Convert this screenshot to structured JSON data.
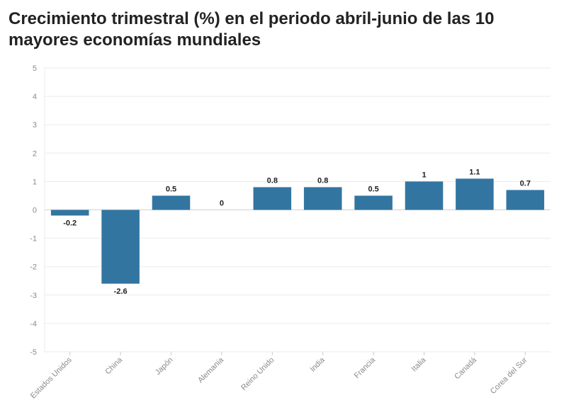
{
  "chart_data": {
    "type": "bar",
    "title": "Crecimiento trimestral (%) en el periodo abril-junio de las 10 mayores economías mundiales",
    "categories": [
      "Estados Unidos",
      "China",
      "Japón",
      "Alemania",
      "Reino Unido",
      "India",
      "Francia",
      "Italia",
      "Canadá",
      "Corea del Sur"
    ],
    "values": [
      -0.2,
      -2.6,
      0.5,
      0,
      0.8,
      0.8,
      0.5,
      1,
      1.1,
      0.7
    ],
    "value_labels": [
      "-0.2",
      "-2.6",
      "0.5",
      "0",
      "0.8",
      "0.8",
      "0.5",
      "1",
      "1.1",
      "0.7"
    ],
    "ylim": [
      -5,
      5
    ],
    "yticks": [
      5,
      4,
      3,
      2,
      1,
      0,
      -1,
      -2,
      -3,
      -4,
      -5
    ],
    "ytick_labels": [
      "5",
      "4",
      "3",
      "2",
      "1",
      "0",
      "-1",
      "-2",
      "-3",
      "-4",
      "-5"
    ],
    "grid": true,
    "bar_color": "#3375a1",
    "xlabel": "",
    "ylabel": ""
  }
}
